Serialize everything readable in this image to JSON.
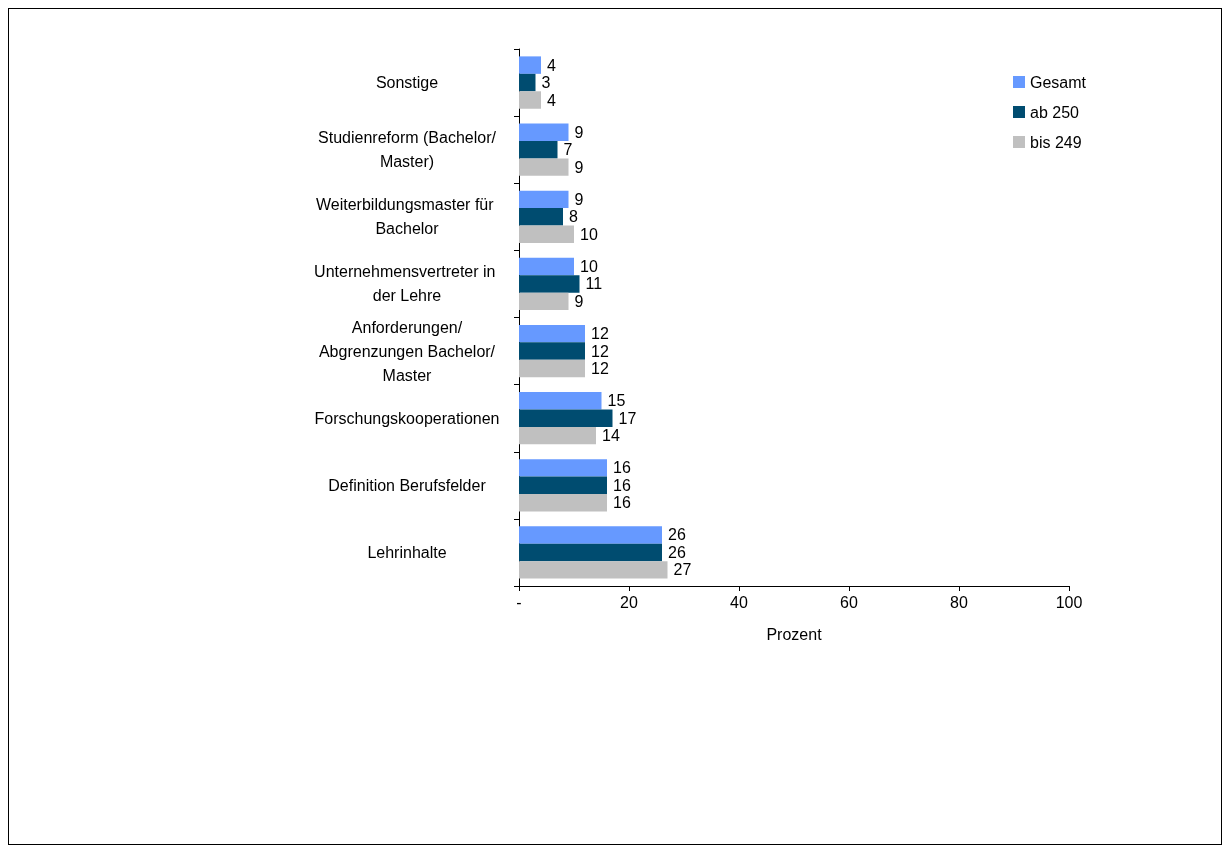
{
  "chart_data": {
    "type": "bar",
    "orientation": "horizontal",
    "xlabel": "Prozent",
    "categories": [
      "Sonstige",
      "Studienreform (Bachelor/Master)",
      "Weiterbildungsmaster für Bachelor",
      "Unternehmensvertreter in der Lehre",
      "Anforderungen/Abgrenzungen Bachelor/Master",
      "Forschungskooperationen",
      "Definition Berufsfelder",
      "Lehrinhalte"
    ],
    "series": [
      {
        "name": "Gesamt",
        "color": "#6699ff",
        "values": [
          4,
          9,
          9,
          10,
          12,
          15,
          16,
          26
        ]
      },
      {
        "name": "ab 250",
        "color": "#004c70",
        "values": [
          3,
          7,
          8,
          11,
          12,
          17,
          16,
          26
        ]
      },
      {
        "name": "bis 249",
        "color": "#c0c0c0",
        "values": [
          4,
          9,
          10,
          9,
          12,
          14,
          16,
          27
        ]
      }
    ],
    "xlim": [
      0,
      100
    ],
    "xticks": [
      {
        "value": 0,
        "label": "-"
      },
      20,
      40,
      60,
      80,
      100
    ],
    "data_labels": true,
    "grid": false,
    "legend": "top right"
  }
}
